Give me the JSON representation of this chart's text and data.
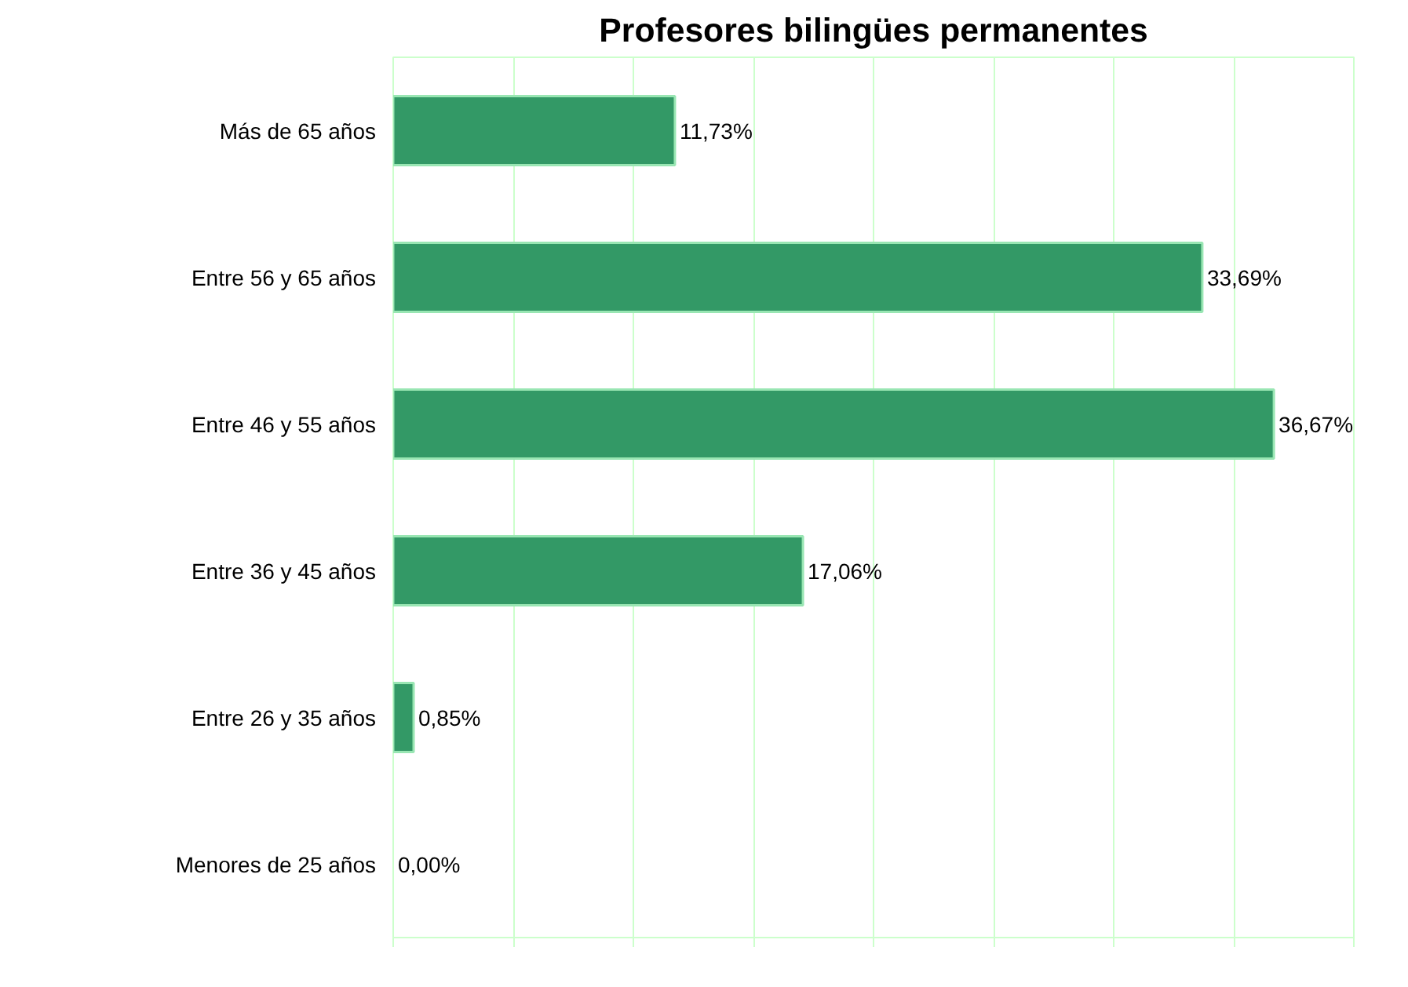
{
  "chart_data": {
    "type": "bar",
    "orientation": "horizontal",
    "title": "Profesores bilingües permanentes",
    "categories": [
      "Más de 65 años",
      "Entre 56 y 65 años",
      "Entre 46 y 55 años",
      "Entre 36 y 45 años",
      "Entre 26 y 35 años",
      "Menores de 25 años"
    ],
    "values": [
      11.73,
      33.69,
      36.67,
      17.06,
      0.85,
      0.0
    ],
    "value_labels": [
      "11,73%",
      "33,69%",
      "36,67%",
      "17,06%",
      "0,85%",
      "0,00%"
    ],
    "color": "#339966",
    "xlim": [
      0,
      40
    ],
    "xticks": [
      {
        "value": 0,
        "label": null
      },
      {
        "value": 5,
        "label": null
      },
      {
        "value": 10,
        "label": null
      },
      {
        "value": 15,
        "label": null
      },
      {
        "value": 20,
        "label": null
      },
      {
        "value": 25,
        "label": null
      },
      {
        "value": 30,
        "label": null
      },
      {
        "value": 35,
        "label": null
      },
      {
        "value": 40,
        "label": null
      }
    ],
    "grid": "x",
    "tick_labels": "y"
  }
}
